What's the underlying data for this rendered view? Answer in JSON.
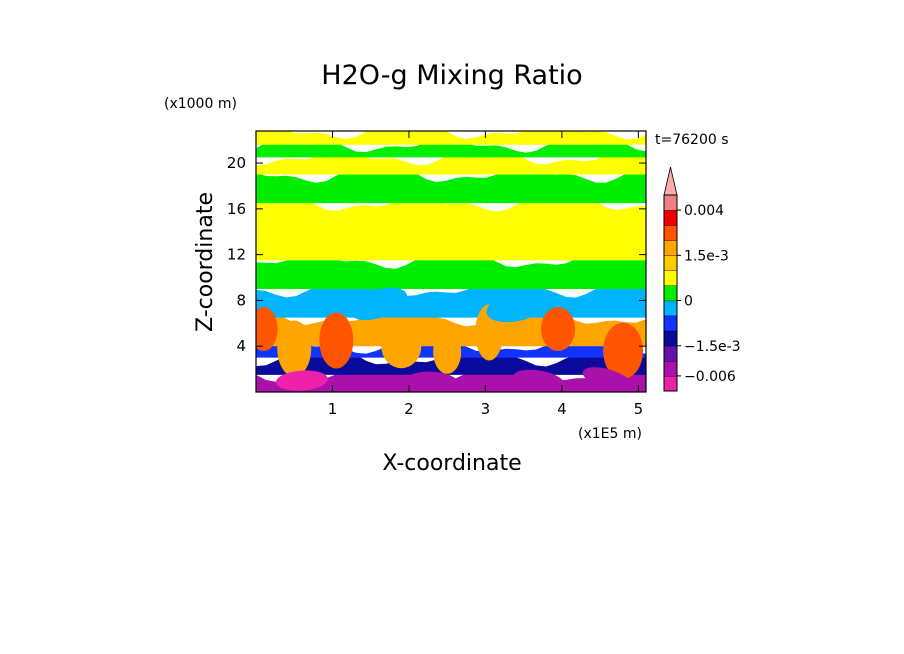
{
  "chart_data": {
    "type": "heatmap",
    "title": "H2O-g Mixing Ratio",
    "xlabel": "X-coordinate",
    "ylabel": "Z-coordinate",
    "x_unit": "(x1E5 m)",
    "y_unit": "(x1000 m)",
    "time_label": "t=76200 s",
    "xlim": [
      0,
      5.1
    ],
    "ylim": [
      0,
      22.8
    ],
    "x_ticks": [
      1,
      2,
      3,
      4,
      5
    ],
    "y_ticks": [
      4,
      8,
      12,
      16,
      20
    ],
    "x_tick_labels": [
      "1",
      "2",
      "3",
      "4",
      "5"
    ],
    "y_tick_labels": [
      "4",
      "8",
      "12",
      "16",
      "20"
    ],
    "colorbar": {
      "tick_labels": [
        "0.004",
        "1.5e-3",
        "0",
        "−1.5e-3",
        "−0.006"
      ],
      "levels": [
        {
          "min": -0.009,
          "max": -0.006,
          "color": "#ee22aa"
        },
        {
          "min": -0.006,
          "max": -0.003,
          "color": "#aa11aa"
        },
        {
          "min": -0.003,
          "max": -0.0015,
          "color": "#6611aa"
        },
        {
          "min": -0.0015,
          "max": -0.001,
          "color": "#0a0a9c"
        },
        {
          "min": -0.001,
          "max": -0.0005,
          "color": "#1133ff"
        },
        {
          "min": -0.0005,
          "max": 0.0,
          "color": "#00b4ff"
        },
        {
          "min": 0.0,
          "max": 0.0005,
          "color": "#00ee00"
        },
        {
          "min": 0.0005,
          "max": 0.001,
          "color": "#ffff00"
        },
        {
          "min": 0.001,
          "max": 0.0015,
          "color": "#ffcc00"
        },
        {
          "min": 0.0015,
          "max": 0.002,
          "color": "#ffa500"
        },
        {
          "min": 0.002,
          "max": 0.003,
          "color": "#ff5500"
        },
        {
          "min": 0.003,
          "max": 0.004,
          "color": "#ee0000"
        },
        {
          "min": 0.004,
          "max": 0.005,
          "color": "#f08080"
        },
        {
          "min": 0.005,
          "max": 0.008,
          "color": "#ffaaaa"
        }
      ]
    },
    "field_bands": [
      {
        "z_min": 0.0,
        "z_max": 1.5,
        "value": -0.0045
      },
      {
        "z_min": 1.5,
        "z_max": 3.0,
        "value": -0.0013
      },
      {
        "z_min": 3.0,
        "z_max": 4.0,
        "value": -0.0008
      },
      {
        "z_min": 4.0,
        "z_max": 6.5,
        "value": 0.0017
      },
      {
        "z_min": 6.5,
        "z_max": 9.0,
        "value": -0.0003
      },
      {
        "z_min": 9.0,
        "z_max": 11.5,
        "value": 0.0003
      },
      {
        "z_min": 11.5,
        "z_max": 16.5,
        "value": 0.0008
      },
      {
        "z_min": 16.5,
        "z_max": 19.0,
        "value": 0.0003
      },
      {
        "z_min": 19.0,
        "z_max": 20.5,
        "value": 0.0008
      },
      {
        "z_min": 20.5,
        "z_max": 21.6,
        "value": 0.0003
      },
      {
        "z_min": 21.6,
        "z_max": 22.8,
        "value": 0.0008
      }
    ],
    "plumes": [
      {
        "x": 0.1,
        "z": 5.5,
        "value": 0.0025
      },
      {
        "x": 1.05,
        "z": 4.5,
        "value": 0.0025
      },
      {
        "x": 1.9,
        "z": 4.0,
        "value": 0.0018
      },
      {
        "x": 3.05,
        "z": 5.2,
        "value": 0.0018
      },
      {
        "x": 3.95,
        "z": 5.5,
        "value": 0.0025
      },
      {
        "x": 4.8,
        "z": 3.6,
        "value": 0.0025
      },
      {
        "x": 2.5,
        "z": 3.5,
        "value": 0.0018
      },
      {
        "x": 0.5,
        "z": 3.8,
        "value": 0.0018
      }
    ],
    "dry_pockets": [
      {
        "x": 1.6,
        "z": 7.7,
        "value": -0.0003
      },
      {
        "x": 3.4,
        "z": 7.4,
        "value": -0.0003
      },
      {
        "x": 0.6,
        "z": 1.0,
        "value": -0.007
      },
      {
        "x": 2.3,
        "z": 0.9,
        "value": -0.0045
      },
      {
        "x": 3.7,
        "z": 1.0,
        "value": -0.0045
      },
      {
        "x": 4.6,
        "z": 1.1,
        "value": -0.0045
      }
    ]
  }
}
